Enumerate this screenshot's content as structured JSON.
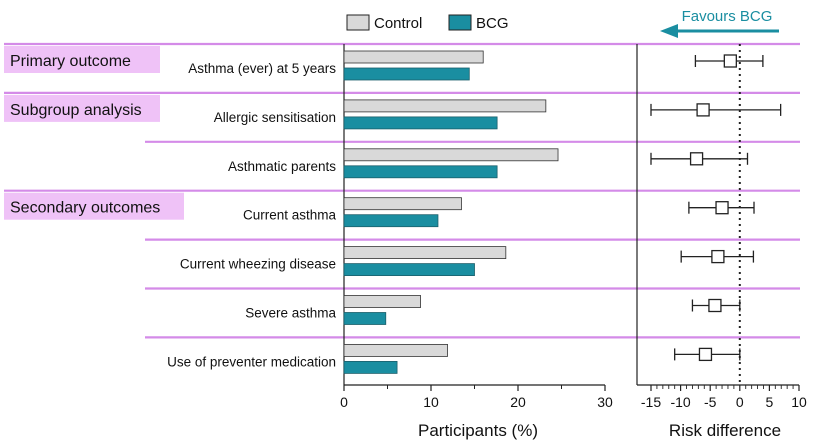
{
  "legend": {
    "control_label": "Control",
    "bcg_label": "BCG",
    "favours_label": "Favours BCG"
  },
  "sections": [
    {
      "label": "Primary outcome",
      "first_row": 0
    },
    {
      "label": "Subgroup analysis",
      "first_row": 1
    },
    {
      "label": "Secondary outcomes",
      "first_row": 3
    }
  ],
  "colors": {
    "control": "#d9d9d9",
    "bcg": "#1a8ea1",
    "separator": "#d48be8",
    "section_bg": "#efc2f7",
    "axis": "#222222"
  },
  "chart_data": [
    {
      "type": "bar",
      "orientation": "horizontal",
      "categories": [
        "Asthma (ever) at 5 years",
        "Allergic sensitisation",
        "Asthmatic parents",
        "Current asthma",
        "Current wheezing disease",
        "Severe asthma",
        "Use of preventer medication"
      ],
      "series": [
        {
          "name": "Control",
          "values": [
            16.0,
            23.2,
            24.6,
            13.5,
            18.6,
            8.8,
            11.9
          ]
        },
        {
          "name": "BCG",
          "values": [
            14.4,
            17.6,
            17.6,
            10.8,
            15.0,
            4.8,
            6.1
          ]
        }
      ],
      "xlabel": "Participants (%)",
      "xlim": [
        0,
        30
      ],
      "xticks": [
        0,
        10,
        20,
        30
      ]
    },
    {
      "type": "scatter",
      "subtype": "forest",
      "categories": [
        "Asthma (ever) at 5 years",
        "Allergic sensitisation",
        "Asthmatic parents",
        "Current asthma",
        "Current wheezing disease",
        "Severe asthma",
        "Use of preventer medication"
      ],
      "estimates": [
        -1.6,
        -6.2,
        -7.3,
        -3.0,
        -3.7,
        -4.2,
        -5.8
      ],
      "ci_low": [
        -7.5,
        -15.0,
        -15.0,
        -8.6,
        -9.9,
        -8.0,
        -11.0
      ],
      "ci_high": [
        3.9,
        6.9,
        1.3,
        2.4,
        2.3,
        0.0,
        0.0
      ],
      "reference_line": 0,
      "xlabel": "Risk difference",
      "xlim": [
        -15,
        10
      ],
      "xticks": [
        -15,
        -10,
        -5,
        0,
        5,
        10
      ]
    }
  ]
}
